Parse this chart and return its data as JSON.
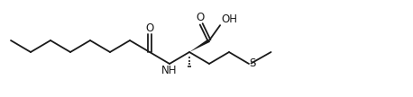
{
  "bg_color": "#ffffff",
  "line_color": "#1a1a1a",
  "lw": 1.3,
  "figsize": [
    4.58,
    1.08
  ],
  "dpi": 100,
  "xlim": [
    0,
    4.58
  ],
  "ylim": [
    0,
    1.08
  ],
  "bx": 0.22,
  "by": 0.13,
  "fontsize": 8.5
}
